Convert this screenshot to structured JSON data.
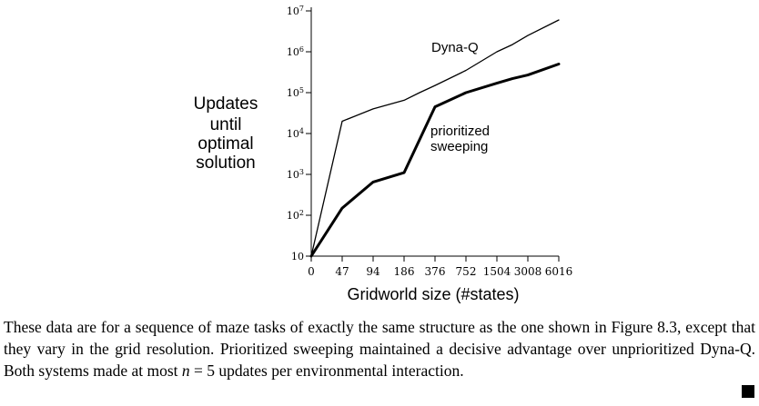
{
  "chart_data": {
    "type": "line",
    "xlabel": "Gridworld size (#states)",
    "ylabel_lines": [
      "Updates",
      "until",
      "optimal",
      "solution"
    ],
    "y_scale": "log",
    "ylim": [
      10,
      10000000
    ],
    "x_categories": [
      "0",
      "47",
      "94",
      "186",
      "376",
      "752",
      "1504",
      "3008",
      "6016"
    ],
    "y_ticks": [
      {
        "value": 10,
        "base": "10",
        "exp": ""
      },
      {
        "value": 100,
        "base": "10",
        "exp": "2"
      },
      {
        "value": 1000,
        "base": "10",
        "exp": "3"
      },
      {
        "value": 10000,
        "base": "10",
        "exp": "4"
      },
      {
        "value": 100000,
        "base": "10",
        "exp": "5"
      },
      {
        "value": 1000000,
        "base": "10",
        "exp": "6"
      },
      {
        "value": 10000000,
        "base": "10",
        "exp": "7"
      }
    ],
    "series": [
      {
        "name": "Dyna-Q",
        "label_lines": [
          "Dyna-Q"
        ],
        "color": "#000000",
        "weight": "thin",
        "points": [
          [
            0,
            10
          ],
          [
            1,
            20000
          ],
          [
            2,
            40000
          ],
          [
            3,
            65000
          ],
          [
            3.5,
            100000
          ],
          [
            4,
            150000
          ],
          [
            5,
            350000
          ],
          [
            6,
            1000000
          ],
          [
            6.5,
            1500000
          ],
          [
            7,
            2500000
          ],
          [
            8,
            6000000
          ]
        ]
      },
      {
        "name": "prioritized sweeping",
        "label_lines": [
          "prioritized",
          "sweeping"
        ],
        "color": "#000000",
        "weight": "thick",
        "points": [
          [
            0,
            10
          ],
          [
            1,
            150
          ],
          [
            2,
            650
          ],
          [
            3,
            1100
          ],
          [
            4,
            45000
          ],
          [
            5,
            100000
          ],
          [
            6,
            170000
          ],
          [
            6.5,
            220000
          ],
          [
            7,
            270000
          ],
          [
            8,
            500000
          ]
        ]
      }
    ]
  },
  "caption": "These data are for a sequence of maze tasks of exactly the same structure as the one shown in Figure 8.3, except that they vary in the grid resolution. Prioritized sweeping maintained a decisive advantage over unprioritized Dyna-Q. Both systems made at most n = 5 updates per environmental interaction.",
  "caption_parts": {
    "before": "These data are for a sequence of maze tasks of exactly the same structure as the one shown in Figure 8.3, except that they vary in the grid resolution. Prioritized sweeping maintained a decisive advantage over unprioritized Dyna-Q. Both systems made at most ",
    "math_var": "n",
    "math_rest": " = 5",
    "after": " updates per environmental interaction."
  }
}
